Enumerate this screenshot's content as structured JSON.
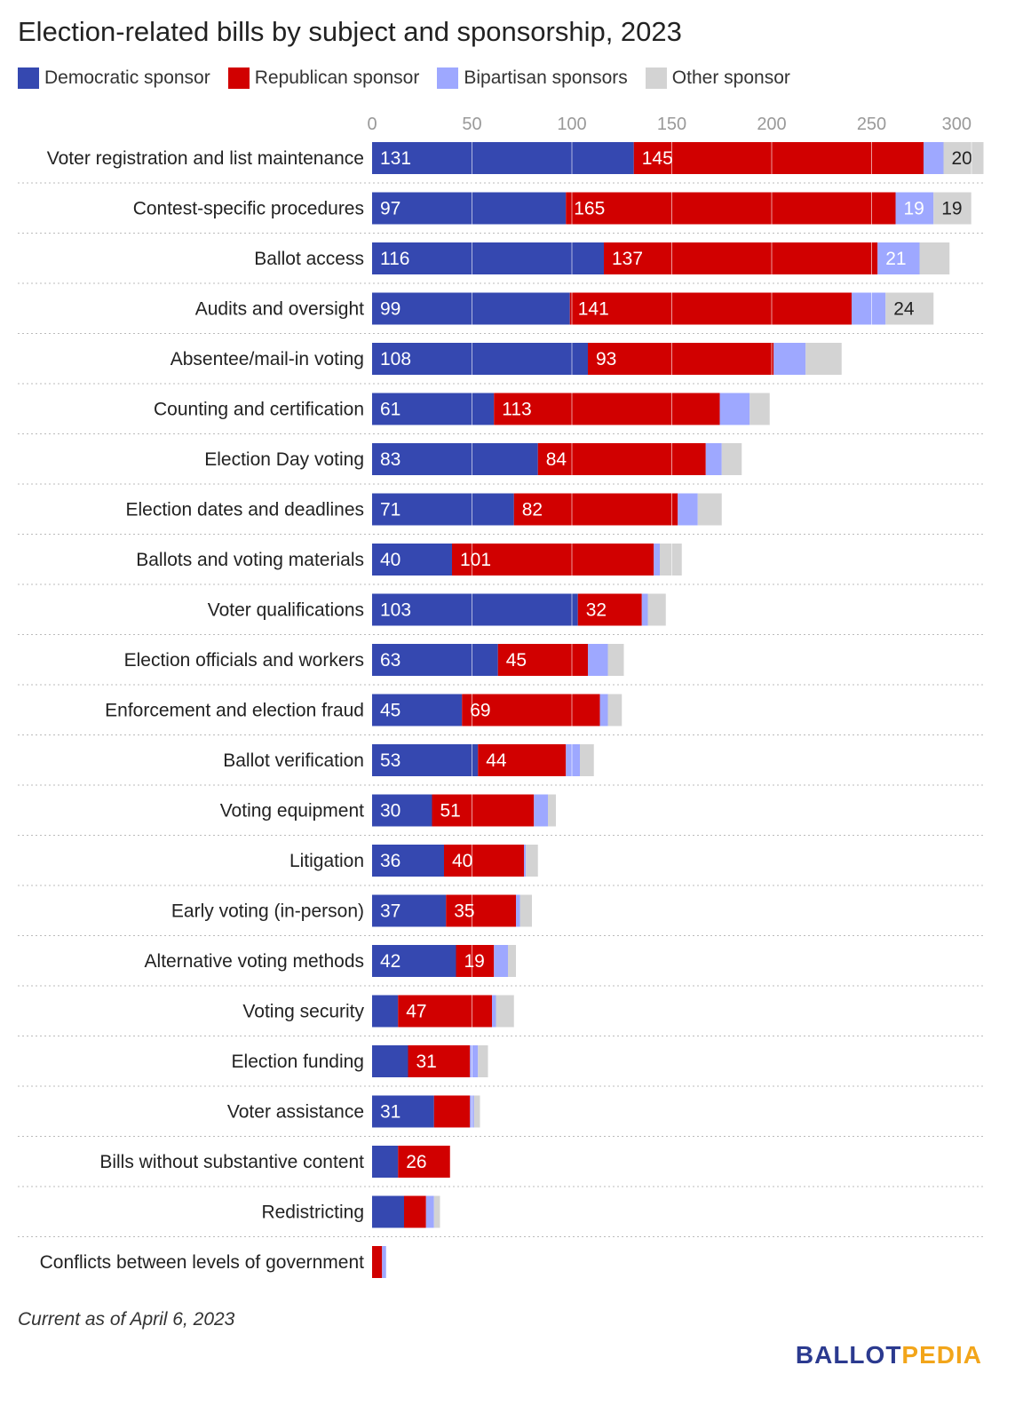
{
  "title": "Election-related bills by subject and sponsorship, 2023",
  "note": "Current as of April 6, 2023",
  "logo": {
    "part1": "BALLOT",
    "part2": "PEDIA"
  },
  "chart_data": {
    "type": "bar",
    "orientation": "horizontal-stacked",
    "title": "Election-related bills by subject and sponsorship, 2023",
    "xlim": [
      0,
      300
    ],
    "xticks": [
      0,
      50,
      100,
      150,
      200,
      250,
      300
    ],
    "legend_position": "top-left",
    "categories": [
      "Voter registration and list maintenance",
      "Contest-specific procedures",
      "Ballot access",
      "Audits and oversight",
      "Absentee/mail-in voting",
      "Counting and certification",
      "Election Day voting",
      "Election dates and deadlines",
      "Ballots and voting materials",
      "Voter qualifications",
      "Election officials and workers",
      "Enforcement and election fraud",
      "Ballot verification",
      "Voting equipment",
      "Litigation",
      "Early voting (in-person)",
      "Alternative voting methods",
      "Voting security",
      "Election funding",
      "Voter assistance",
      "Bills without substantive content",
      "Redistricting",
      "Conflicts between levels of government"
    ],
    "series": [
      {
        "name": "Democratic sponsor",
        "color": "#3548b0",
        "values": [
          131,
          97,
          116,
          99,
          108,
          61,
          83,
          71,
          40,
          103,
          63,
          45,
          53,
          30,
          36,
          37,
          42,
          13,
          18,
          31,
          13,
          16,
          0
        ]
      },
      {
        "name": "Republican sponsor",
        "color": "#d10000",
        "values": [
          145,
          165,
          137,
          141,
          93,
          113,
          84,
          82,
          101,
          32,
          45,
          69,
          44,
          51,
          40,
          35,
          19,
          47,
          31,
          18,
          26,
          11,
          5
        ]
      },
      {
        "name": "Bipartisan sponsors",
        "color": "#9ea8ff",
        "values": [
          10,
          19,
          21,
          17,
          16,
          15,
          8,
          10,
          3,
          3,
          10,
          4,
          7,
          7,
          1,
          2,
          7,
          2,
          4,
          2,
          0,
          4,
          2
        ]
      },
      {
        "name": "Other sponsor",
        "color": "#d3d3d3",
        "values": [
          20,
          19,
          15,
          24,
          18,
          10,
          10,
          12,
          11,
          9,
          8,
          7,
          7,
          4,
          6,
          6,
          4,
          9,
          5,
          3,
          0,
          3,
          0
        ]
      }
    ],
    "label_threshold": 19
  }
}
